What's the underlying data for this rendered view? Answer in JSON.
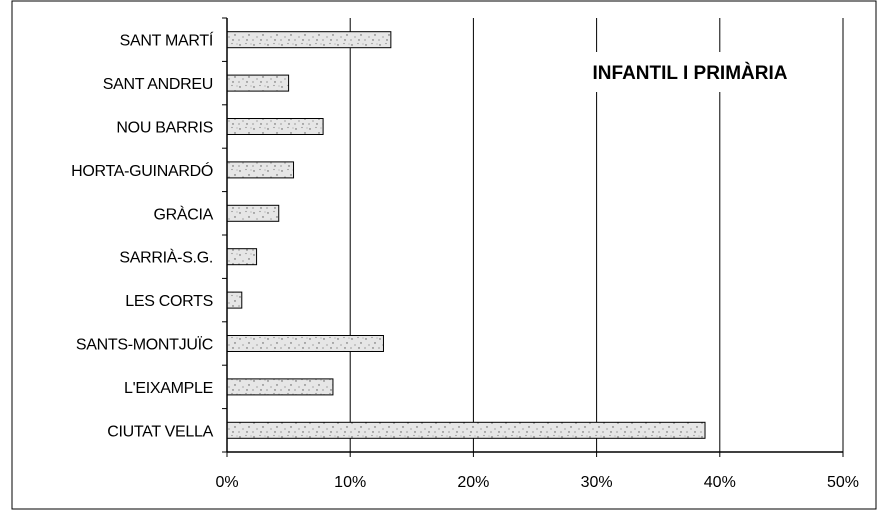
{
  "chart_data": {
    "type": "bar",
    "orientation": "horizontal",
    "title": "INFANTIL I PRIMÀRIA",
    "xlabel": "",
    "ylabel": "",
    "categories": [
      "SANT MARTÍ",
      "SANT ANDREU",
      "NOU BARRIS",
      "HORTA-GUINARDÓ",
      "GRÀCIA",
      "SARRIÀ-S.G.",
      "LES CORTS",
      "SANTS-MONTJUÏC",
      "L'EIXAMPLE",
      "CIUTAT VELLA"
    ],
    "values": [
      13.3,
      5.0,
      7.8,
      5.4,
      4.2,
      2.4,
      1.2,
      12.7,
      8.6,
      38.8
    ],
    "xlim": [
      0,
      50
    ],
    "x_ticks": [
      0,
      10,
      20,
      30,
      40,
      50
    ],
    "x_tick_labels": [
      "0%",
      "10%",
      "20%",
      "30%",
      "40%",
      "50%"
    ],
    "grid": "vertical",
    "colors": {
      "bar_fill": "#e2e2e2",
      "bar_stroke": "#000000",
      "grid": "#000000",
      "axis": "#000000"
    }
  }
}
